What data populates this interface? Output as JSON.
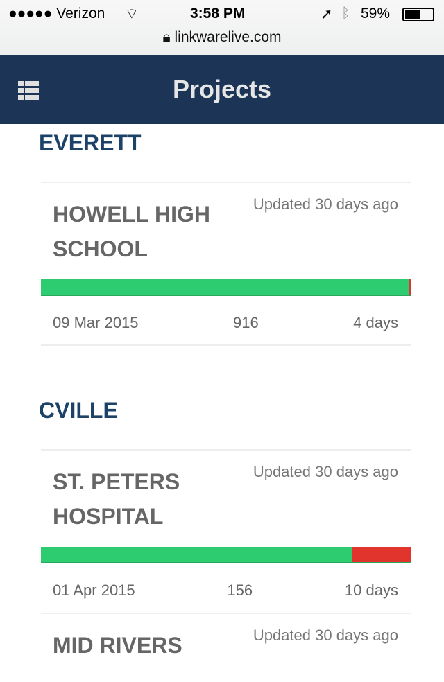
{
  "status_bar": {
    "carrier": "●●●●● Verizon",
    "time": "3:58 PM",
    "battery": "59%",
    "url": "linkwarelive.com"
  },
  "header": {
    "title": "Projects"
  },
  "groups": [
    {
      "name": "EVERETT",
      "projects": [
        {
          "name": "HOWELL HIGH SCHOOL",
          "updated": "Updated 30 days ago",
          "pass_fraction": 0.996,
          "date": "09 Mar 2015",
          "count": "916",
          "duration": "4 days"
        }
      ]
    },
    {
      "name": "CVILLE",
      "projects": [
        {
          "name": "ST. PETERS HOSPITAL",
          "updated": "Updated 30 days ago",
          "pass_fraction": 0.84,
          "date": "01 Apr 2015",
          "count": "156",
          "duration": "10 days"
        },
        {
          "name": "MID RIVERS",
          "updated": "Updated 30 days ago"
        }
      ]
    }
  ],
  "colors": {
    "header": "#1c3557",
    "group": "#1d4268",
    "pass": "#2ecc71",
    "fail": "#e0342c"
  }
}
